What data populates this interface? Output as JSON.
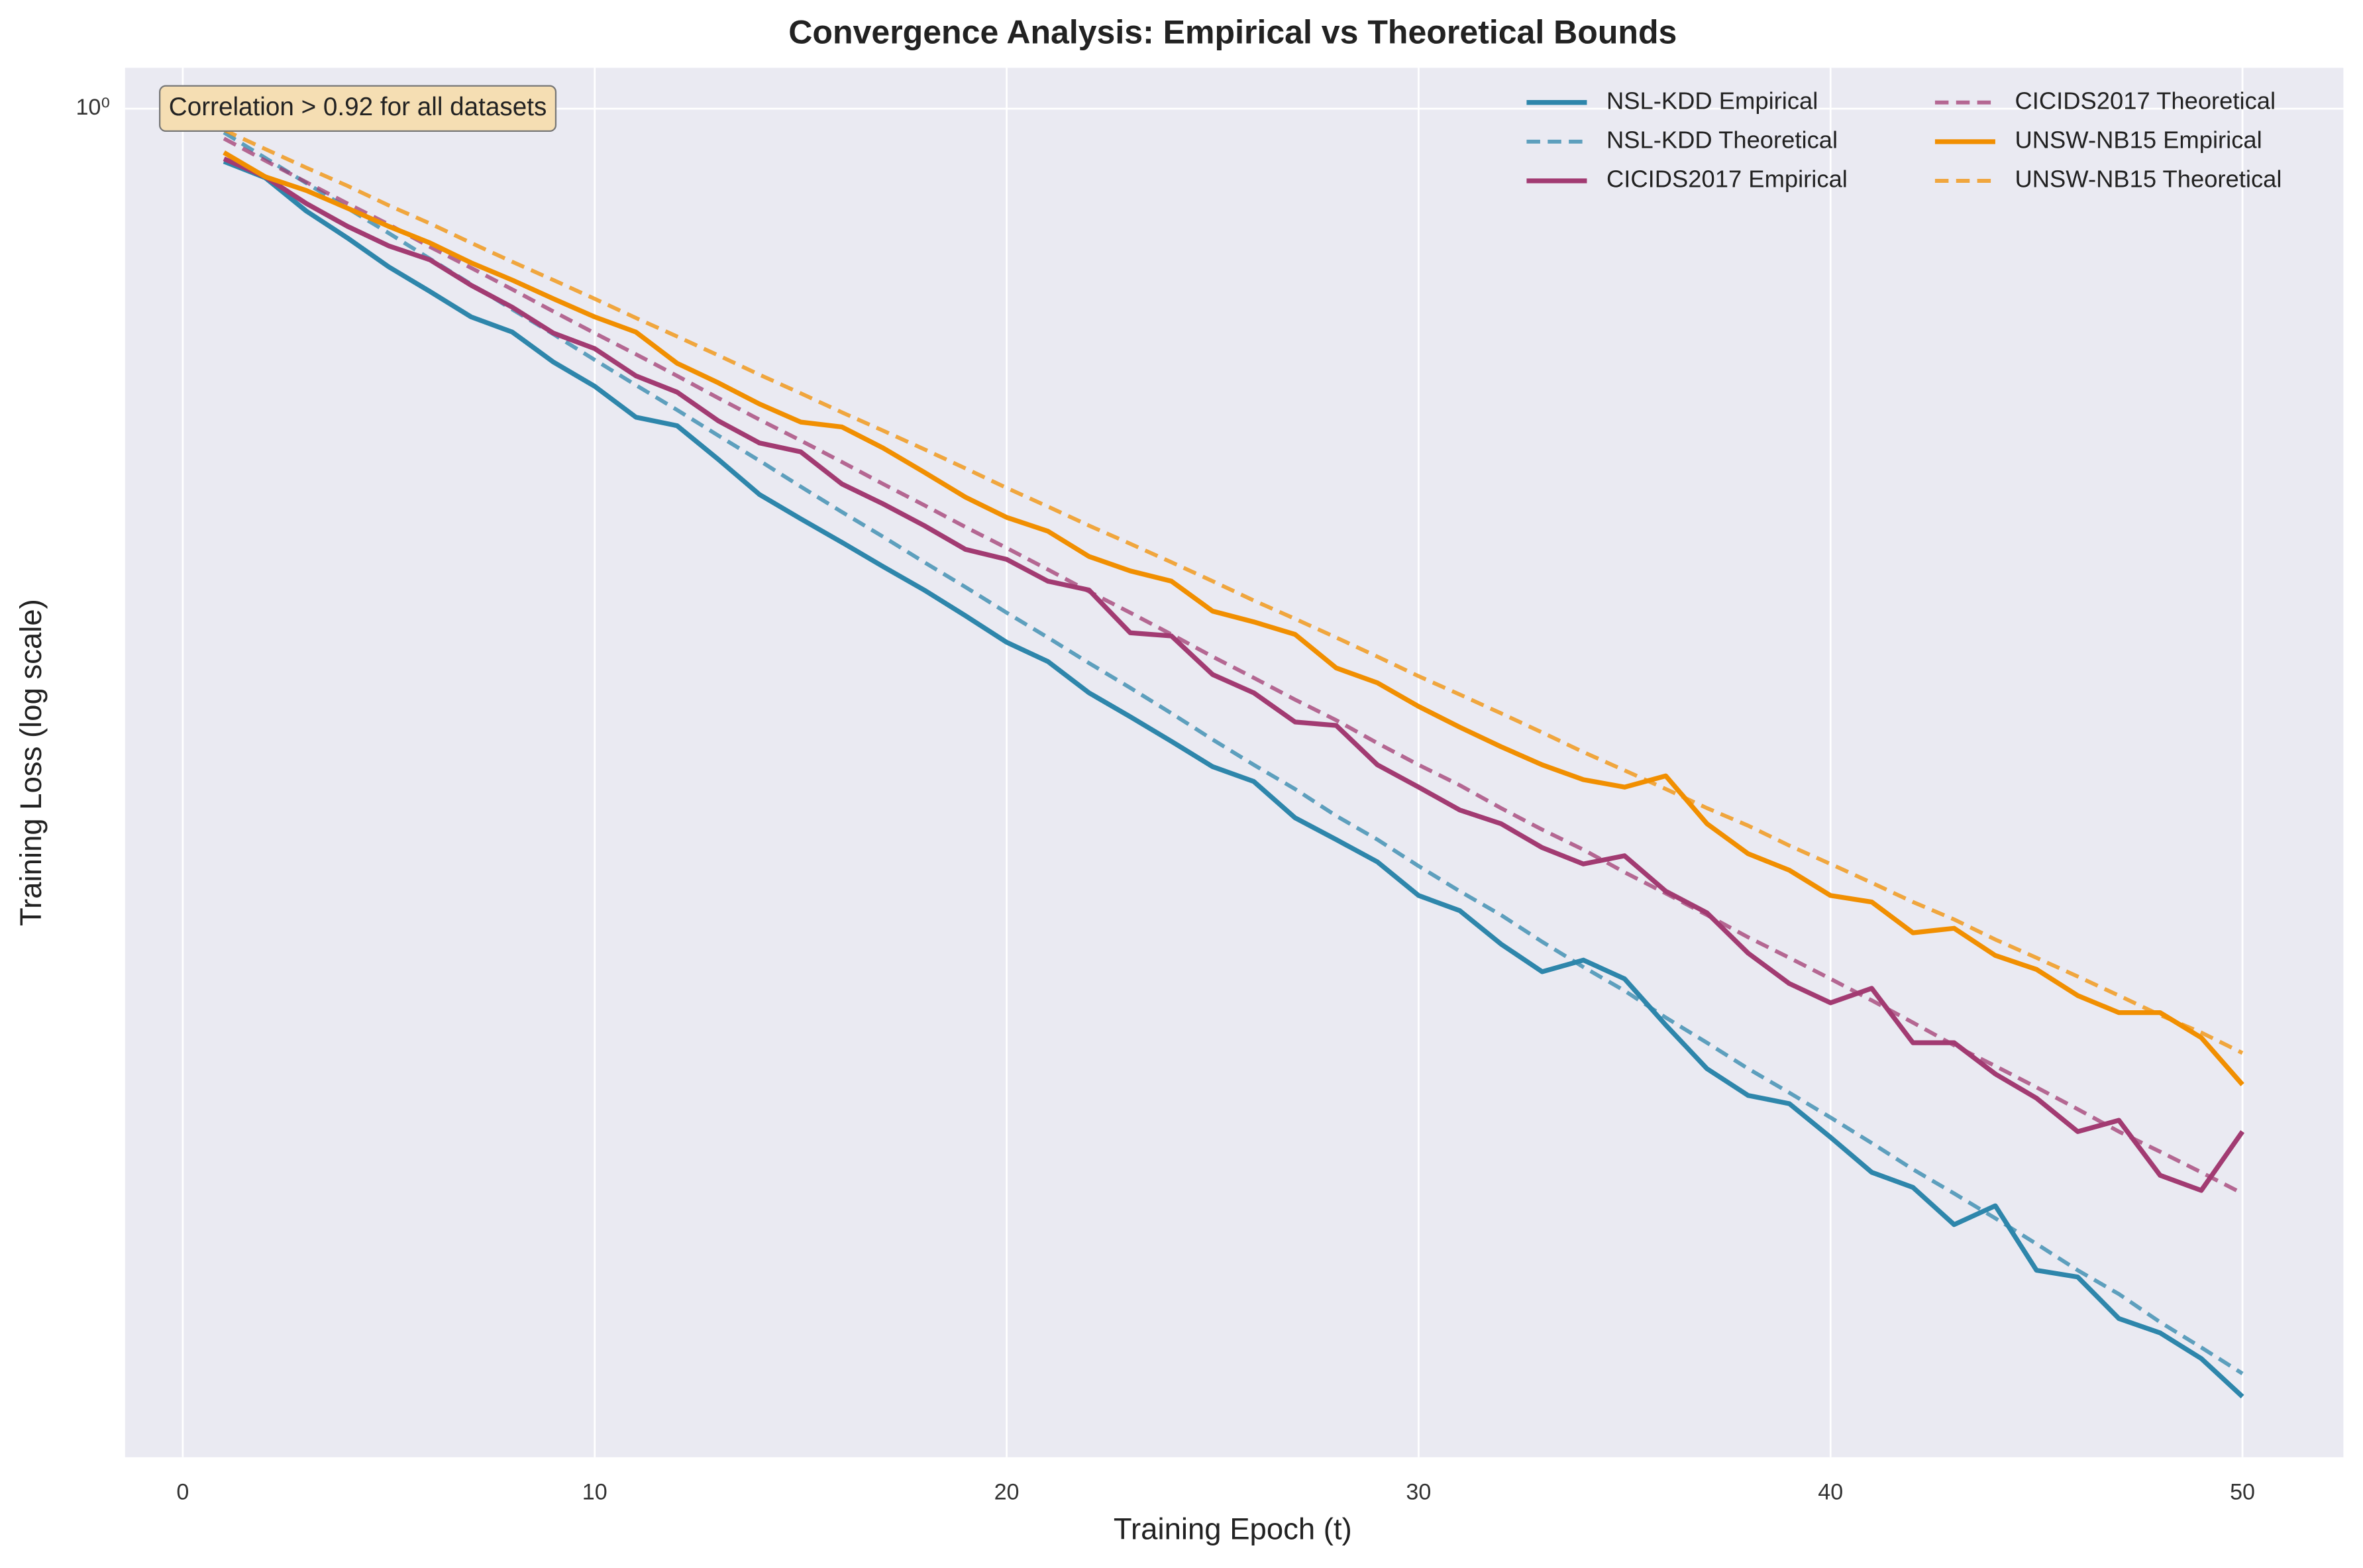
{
  "chart_data": {
    "type": "line",
    "title": "Convergence Analysis: Empirical vs Theoretical Bounds",
    "xlabel": "Training Epoch (t)",
    "ylabel": "Training Loss (log scale)",
    "annotation": "Correlation > 0.92 for all datasets",
    "yscale": "log",
    "grid": true,
    "legend": "upper right",
    "x": [
      1,
      2,
      3,
      4,
      5,
      6,
      7,
      8,
      9,
      10,
      11,
      12,
      13,
      14,
      15,
      16,
      17,
      18,
      19,
      20,
      21,
      22,
      23,
      24,
      25,
      26,
      27,
      28,
      29,
      30,
      31,
      32,
      33,
      34,
      35,
      36,
      37,
      38,
      39,
      40,
      41,
      42,
      43,
      44,
      45,
      46,
      47,
      48,
      49,
      50
    ],
    "xlim": [
      -1.4,
      52.45
    ],
    "xticks": [
      0,
      10,
      20,
      30,
      40,
      50
    ],
    "ylim": [
      0.2,
      1.05
    ],
    "yticks": [
      {
        "value": 1,
        "label": "10⁰"
      }
    ],
    "series": [
      {
        "name": "NSL-KDD Empirical",
        "color": "#2e86ab",
        "linestyle": "solid",
        "values": [
          0.939,
          0.921,
          0.885,
          0.857,
          0.828,
          0.804,
          0.78,
          0.766,
          0.739,
          0.718,
          0.692,
          0.685,
          0.658,
          0.631,
          0.613,
          0.596,
          0.579,
          0.563,
          0.546,
          0.529,
          0.517,
          0.498,
          0.484,
          0.47,
          0.456,
          0.448,
          0.429,
          0.418,
          0.407,
          0.391,
          0.384,
          0.369,
          0.357,
          0.362,
          0.354,
          0.335,
          0.318,
          0.308,
          0.305,
          0.293,
          0.281,
          0.276,
          0.264,
          0.27,
          0.25,
          0.248,
          0.236,
          0.232,
          0.225,
          0.215
        ]
      },
      {
        "name": "NSL-KDD Theoretical",
        "color": "#2e86ab",
        "linestyle": "dashed",
        "values": [
          0.972,
          0.943,
          0.915,
          0.888,
          0.862,
          0.836,
          0.811,
          0.787,
          0.764,
          0.741,
          0.719,
          0.698,
          0.677,
          0.657,
          0.637,
          0.618,
          0.6,
          0.582,
          0.565,
          0.548,
          0.532,
          0.516,
          0.501,
          0.486,
          0.471,
          0.457,
          0.444,
          0.43,
          0.418,
          0.405,
          0.393,
          0.382,
          0.37,
          0.359,
          0.349,
          0.338,
          0.328,
          0.318,
          0.309,
          0.3,
          0.291,
          0.282,
          0.274,
          0.266,
          0.258,
          0.25,
          0.243,
          0.235,
          0.228,
          0.221
        ]
      },
      {
        "name": "CICIDS2017 Empirical",
        "color": "#a23b72",
        "linestyle": "solid",
        "values": [
          0.942,
          0.922,
          0.893,
          0.869,
          0.849,
          0.835,
          0.81,
          0.789,
          0.765,
          0.751,
          0.727,
          0.713,
          0.689,
          0.671,
          0.664,
          0.639,
          0.624,
          0.608,
          0.591,
          0.584,
          0.569,
          0.563,
          0.535,
          0.533,
          0.509,
          0.498,
          0.481,
          0.479,
          0.457,
          0.445,
          0.433,
          0.426,
          0.414,
          0.406,
          0.41,
          0.393,
          0.383,
          0.365,
          0.352,
          0.344,
          0.35,
          0.328,
          0.328,
          0.316,
          0.307,
          0.295,
          0.299,
          0.28,
          0.275,
          0.295
        ]
      },
      {
        "name": "CICIDS2017 Theoretical",
        "color": "#a23b72",
        "linestyle": "dashed",
        "values": [
          0.965,
          0.94,
          0.916,
          0.893,
          0.871,
          0.848,
          0.827,
          0.806,
          0.785,
          0.765,
          0.746,
          0.727,
          0.708,
          0.69,
          0.673,
          0.656,
          0.639,
          0.623,
          0.607,
          0.592,
          0.577,
          0.562,
          0.548,
          0.534,
          0.52,
          0.507,
          0.494,
          0.482,
          0.469,
          0.457,
          0.446,
          0.434,
          0.423,
          0.413,
          0.402,
          0.392,
          0.382,
          0.372,
          0.363,
          0.354,
          0.345,
          0.336,
          0.327,
          0.319,
          0.311,
          0.303,
          0.295,
          0.288,
          0.281,
          0.274
        ]
      },
      {
        "name": "UNSW-NB15 Empirical",
        "color": "#f18f01",
        "linestyle": "solid",
        "values": [
          0.949,
          0.922,
          0.907,
          0.888,
          0.869,
          0.852,
          0.832,
          0.815,
          0.797,
          0.78,
          0.766,
          0.738,
          0.721,
          0.703,
          0.688,
          0.684,
          0.667,
          0.648,
          0.629,
          0.614,
          0.604,
          0.586,
          0.576,
          0.569,
          0.549,
          0.542,
          0.534,
          0.513,
          0.504,
          0.49,
          0.478,
          0.467,
          0.457,
          0.449,
          0.445,
          0.451,
          0.426,
          0.411,
          0.403,
          0.391,
          0.388,
          0.374,
          0.376,
          0.364,
          0.358,
          0.347,
          0.34,
          0.34,
          0.33,
          0.312
        ]
      },
      {
        "name": "UNSW-NB15 Theoretical",
        "color": "#f18f01",
        "linestyle": "dashed",
        "values": [
          0.975,
          0.953,
          0.932,
          0.912,
          0.891,
          0.872,
          0.852,
          0.833,
          0.815,
          0.797,
          0.779,
          0.762,
          0.745,
          0.728,
          0.712,
          0.696,
          0.681,
          0.666,
          0.651,
          0.636,
          0.622,
          0.608,
          0.595,
          0.582,
          0.569,
          0.556,
          0.544,
          0.532,
          0.52,
          0.508,
          0.497,
          0.486,
          0.475,
          0.464,
          0.454,
          0.444,
          0.434,
          0.425,
          0.415,
          0.406,
          0.397,
          0.388,
          0.38,
          0.371,
          0.363,
          0.355,
          0.347,
          0.339,
          0.332,
          0.324
        ]
      }
    ]
  }
}
